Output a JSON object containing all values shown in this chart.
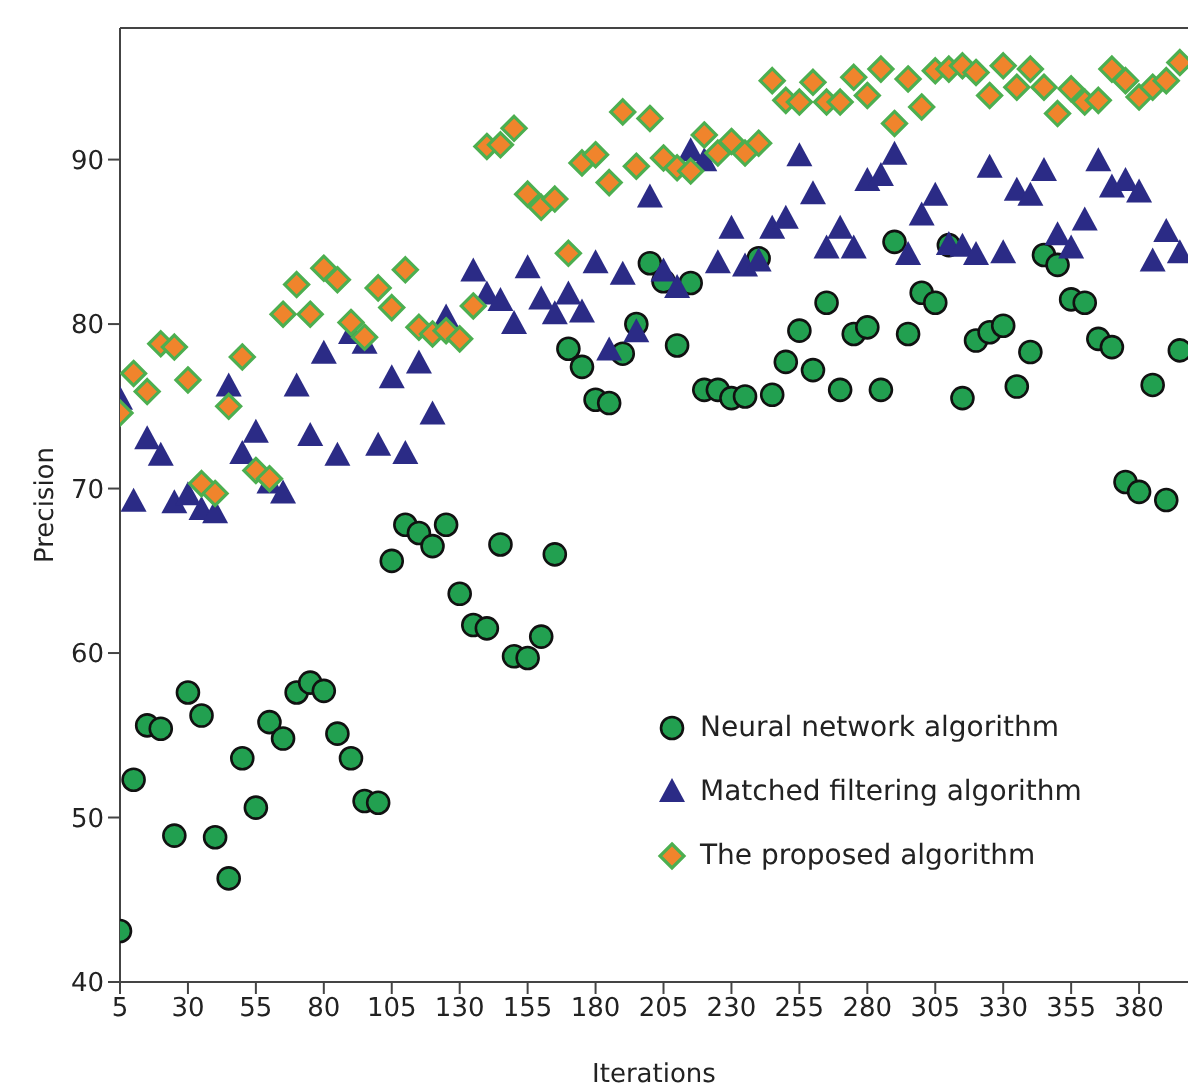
{
  "chart_data": {
    "type": "scatter",
    "xlabel": "Iterations",
    "ylabel": "Precision",
    "x": [
      5,
      10,
      15,
      20,
      25,
      30,
      35,
      40,
      45,
      50,
      55,
      60,
      65,
      70,
      75,
      80,
      85,
      90,
      95,
      100,
      105,
      110,
      115,
      120,
      125,
      130,
      135,
      140,
      145,
      150,
      155,
      160,
      165,
      170,
      175,
      180,
      185,
      190,
      195,
      200,
      205,
      210,
      215,
      220,
      225,
      230,
      235,
      240,
      245,
      250,
      255,
      260,
      265,
      270,
      275,
      280,
      285,
      290,
      295,
      300,
      305,
      310,
      315,
      320,
      325,
      330,
      335,
      340,
      345,
      350,
      355,
      360,
      365,
      370,
      375,
      380,
      385,
      390,
      395
    ],
    "xlim": [
      5,
      398
    ],
    "xticks": [
      5,
      30,
      55,
      80,
      105,
      130,
      155,
      180,
      205,
      230,
      255,
      280,
      305,
      330,
      355,
      380
    ],
    "ylim": [
      40,
      98
    ],
    "yticks": [
      40,
      50,
      60,
      70,
      80,
      90
    ],
    "grid": false,
    "legend": "bottom right",
    "series": [
      {
        "name": "Neural network algorithm",
        "color": "#22a050",
        "marker": "circle",
        "values": [
          43.1,
          52.3,
          55.6,
          55.4,
          48.9,
          57.6,
          56.2,
          48.8,
          46.3,
          53.6,
          50.6,
          55.8,
          54.8,
          57.6,
          58.2,
          57.7,
          55.1,
          53.6,
          51,
          50.9,
          65.6,
          67.8,
          67.3,
          66.5,
          67.8,
          63.6,
          61.7,
          61.5,
          66.6,
          59.8,
          59.7,
          61,
          66,
          78.5,
          77.4,
          75.4,
          75.2,
          78.2,
          80,
          83.7,
          82.6,
          78.7,
          82.5,
          76,
          76,
          75.5,
          75.6,
          84,
          75.7,
          77.7,
          79.6,
          77.2,
          81.3,
          76,
          79.4,
          79.8,
          76,
          85,
          79.4,
          81.9,
          81.3,
          84.8,
          75.5,
          79,
          79.5,
          79.9,
          76.2,
          78.3,
          84.2,
          83.6,
          81.5,
          81.3,
          79.1,
          78.6,
          70.4,
          69.8,
          76.3,
          69.3,
          78.4
        ]
      },
      {
        "name": "Matched filtering algorithm",
        "color": "#2b2b86",
        "marker": "triangle",
        "values": [
          75.4,
          69.2,
          73,
          72,
          69.1,
          69.6,
          68.7,
          68.5,
          76.2,
          72.1,
          73.4,
          70.3,
          69.7,
          76.2,
          73.2,
          78.2,
          72,
          79.4,
          78.8,
          72.6,
          76.7,
          72.1,
          77.6,
          74.5,
          80.4,
          null,
          83.2,
          81.8,
          81.4,
          80,
          83.4,
          81.5,
          80.6,
          81.8,
          80.7,
          83.7,
          78.4,
          83,
          79.5,
          87.7,
          83.2,
          82.2,
          90.5,
          89.9,
          83.7,
          85.8,
          83.5,
          83.8,
          85.8,
          86.4,
          90.2,
          87.9,
          84.6,
          85.8,
          84.6,
          88.7,
          89,
          90.3,
          84.2,
          86.6,
          87.8,
          84.8,
          84.7,
          84.2,
          89.5,
          84.3,
          88.1,
          87.8,
          89.3,
          85.4,
          84.6,
          86.3,
          89.9,
          88.3,
          88.7,
          88,
          83.8,
          85.6,
          84.3
        ]
      },
      {
        "name": "The proposed algorithm",
        "color": "#f0842c",
        "marker": "diamond",
        "values": [
          74.6,
          77,
          75.9,
          78.8,
          78.6,
          76.6,
          70.3,
          69.7,
          75,
          78,
          71.1,
          70.6,
          80.6,
          82.4,
          80.6,
          83.4,
          82.7,
          80.1,
          79.2,
          82.2,
          81,
          83.3,
          79.8,
          79.4,
          79.6,
          79.1,
          81.1,
          90.8,
          90.9,
          91.9,
          87.9,
          87.1,
          87.6,
          84.3,
          89.8,
          90.3,
          88.6,
          92.9,
          89.6,
          92.5,
          90.1,
          89.5,
          89.3,
          91.5,
          90.4,
          91.1,
          90.4,
          91,
          94.8,
          93.6,
          93.5,
          94.7,
          93.5,
          93.5,
          95,
          93.9,
          95.5,
          92.2,
          94.9,
          93.2,
          95.4,
          95.5,
          95.7,
          95.3,
          93.9,
          95.7,
          94.4,
          95.5,
          94.4,
          92.8,
          94.3,
          93.5,
          93.6,
          95.5,
          94.8,
          93.8,
          94.4,
          94.8,
          95.9
        ]
      }
    ]
  }
}
